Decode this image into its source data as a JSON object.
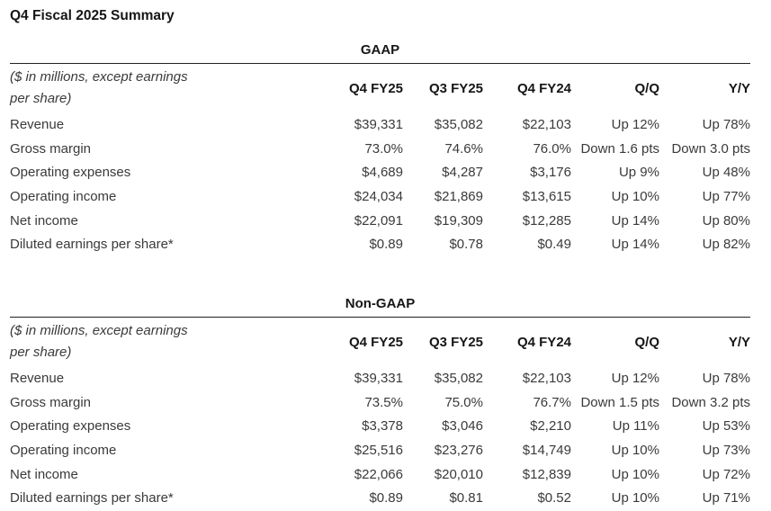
{
  "page": {
    "title": "Q4 Fiscal 2025 Summary"
  },
  "caption": {
    "line1": "($ in millions, except earnings",
    "line2": "per share)"
  },
  "columns": [
    "Q4 FY25",
    "Q3 FY25",
    "Q4 FY24",
    "Q/Q",
    "Y/Y"
  ],
  "tables": [
    {
      "name": "GAAP",
      "rows": [
        {
          "label": "Revenue",
          "values": [
            "$39,331",
            "$35,082",
            "$22,103",
            "Up 12%",
            "Up 78%"
          ]
        },
        {
          "label": "Gross margin",
          "values": [
            "73.0%",
            "74.6%",
            "76.0%",
            "Down 1.6 pts",
            "Down 3.0 pts"
          ]
        },
        {
          "label": "Operating expenses",
          "values": [
            "$4,689",
            "$4,287",
            "$3,176",
            "Up 9%",
            "Up 48%"
          ]
        },
        {
          "label": "Operating income",
          "values": [
            "$24,034",
            "$21,869",
            "$13,615",
            "Up 10%",
            "Up 77%"
          ]
        },
        {
          "label": "Net income",
          "values": [
            "$22,091",
            "$19,309",
            "$12,285",
            "Up 14%",
            "Up 80%"
          ]
        },
        {
          "label": "Diluted earnings per share*",
          "values": [
            "$0.89",
            "$0.78",
            "$0.49",
            "Up 14%",
            "Up 82%"
          ]
        }
      ]
    },
    {
      "name": "Non-GAAP",
      "rows": [
        {
          "label": "Revenue",
          "values": [
            "$39,331",
            "$35,082",
            "$22,103",
            "Up 12%",
            "Up 78%"
          ]
        },
        {
          "label": "Gross margin",
          "values": [
            "73.5%",
            "75.0%",
            "76.7%",
            "Down 1.5 pts",
            "Down 3.2 pts"
          ]
        },
        {
          "label": "Operating expenses",
          "values": [
            "$3,378",
            "$3,046",
            "$2,210",
            "Up 11%",
            "Up 53%"
          ]
        },
        {
          "label": "Operating income",
          "values": [
            "$25,516",
            "$23,276",
            "$14,749",
            "Up 10%",
            "Up 73%"
          ]
        },
        {
          "label": "Net income",
          "values": [
            "$22,066",
            "$20,010",
            "$12,839",
            "Up 10%",
            "Up 72%"
          ]
        },
        {
          "label": "Diluted earnings per share*",
          "values": [
            "$0.89",
            "$0.81",
            "$0.52",
            "Up 10%",
            "Up 71%"
          ]
        }
      ]
    }
  ],
  "colors": {
    "text": "#3a3a3a",
    "heading": "#161616",
    "rule": "#222222",
    "background": "#ffffff"
  }
}
